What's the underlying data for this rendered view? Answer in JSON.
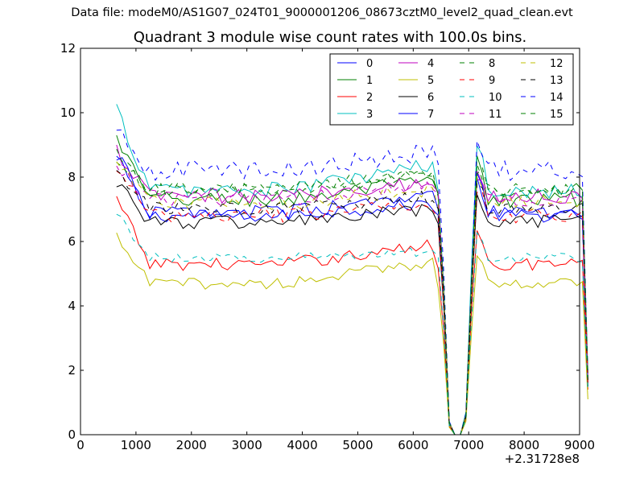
{
  "header": {
    "suptitle": "Data file: modeM0/AS1G07_024T01_9000001206_08673cztM0_level2_quad_clean.evt"
  },
  "chart_data": {
    "type": "line",
    "title": "Quadrant 3 module wise count rates with 100.0s bins.",
    "xlabel": "",
    "ylabel": "",
    "x_offset_label": "+2.31728e8",
    "xlim": [
      0,
      9000
    ],
    "ylim": [
      0,
      12
    ],
    "xticks": [
      0,
      1000,
      2000,
      3000,
      4000,
      5000,
      6000,
      7000,
      8000,
      9000
    ],
    "yticks": [
      0,
      2,
      4,
      6,
      8,
      10,
      12
    ],
    "grid": false,
    "legend_placement": "top-right",
    "legend_columns": 4,
    "x_start": 650,
    "x_step": 100,
    "shape": [
      1,
      1,
      1,
      1,
      1,
      1,
      1,
      1,
      1,
      1,
      1,
      1,
      1,
      1,
      1,
      1,
      1,
      1,
      1,
      1,
      1,
      1,
      1,
      1,
      1,
      1,
      1,
      1,
      1,
      1,
      1,
      1,
      1,
      1,
      1,
      1,
      1,
      1,
      1,
      1,
      1,
      1,
      1,
      1,
      1,
      1,
      1,
      1,
      1,
      1,
      1,
      1,
      1,
      1,
      1,
      1,
      1,
      1,
      1,
      0.6,
      0.05,
      0,
      0,
      0.07,
      0.55,
      1,
      1,
      1,
      1,
      1,
      1,
      1,
      1,
      1,
      1,
      1,
      1,
      1,
      1,
      1,
      1,
      1,
      1,
      1,
      1,
      0.27
    ],
    "series": [
      {
        "name": "0",
        "color": "#0000ff",
        "dashed": false,
        "start": 8.6,
        "base": 6.8,
        "end": 1.5,
        "noise": 0.2,
        "trend": 0.4
      },
      {
        "name": "1",
        "color": "#008000",
        "dashed": false,
        "start": 9.2,
        "base": 7.3,
        "end": 1.6,
        "noise": 0.25,
        "trend": 0.6
      },
      {
        "name": "2",
        "color": "#ff0000",
        "dashed": false,
        "start": 7.3,
        "base": 5.3,
        "end": 1.4,
        "noise": 0.2,
        "trend": 0.6
      },
      {
        "name": "3",
        "color": "#00bfbf",
        "dashed": false,
        "start": 10.1,
        "base": 7.6,
        "end": 1.9,
        "noise": 0.25,
        "trend": 0.8
      },
      {
        "name": "4",
        "color": "#bf00bf",
        "dashed": false,
        "start": 8.8,
        "base": 7.4,
        "end": 1.8,
        "noise": 0.25,
        "trend": 0.5
      },
      {
        "name": "5",
        "color": "#bfbf00",
        "dashed": false,
        "start": 6.1,
        "base": 4.7,
        "end": 1.1,
        "noise": 0.18,
        "trend": 0.7
      },
      {
        "name": "6",
        "color": "#000000",
        "dashed": false,
        "start": 7.9,
        "base": 6.6,
        "end": 1.5,
        "noise": 0.22,
        "trend": 0.4
      },
      {
        "name": "7",
        "color": "#0000ff",
        "dashed": false,
        "start": 8.7,
        "base": 6.9,
        "end": 1.6,
        "noise": 0.22,
        "trend": 0.5
      },
      {
        "name": "8",
        "color": "#008000",
        "dashed": true,
        "start": 8.6,
        "base": 7.6,
        "end": 1.9,
        "noise": 0.22,
        "trend": 0.6
      },
      {
        "name": "9",
        "color": "#ff0000",
        "dashed": true,
        "start": 8.3,
        "base": 6.8,
        "end": 1.6,
        "noise": 0.22,
        "trend": 0.4
      },
      {
        "name": "10",
        "color": "#00bfbf",
        "dashed": true,
        "start": 6.9,
        "base": 5.5,
        "end": 1.4,
        "noise": 0.15,
        "trend": 0.2
      },
      {
        "name": "11",
        "color": "#bf00bf",
        "dashed": true,
        "start": 8.4,
        "base": 7.3,
        "end": 1.7,
        "noise": 0.22,
        "trend": 0.5
      },
      {
        "name": "12",
        "color": "#bfbf00",
        "dashed": true,
        "start": 8.5,
        "base": 7.2,
        "end": 1.6,
        "noise": 0.22,
        "trend": 0.4
      },
      {
        "name": "13",
        "color": "#000000",
        "dashed": true,
        "start": 8.2,
        "base": 7.0,
        "end": 1.7,
        "noise": 0.22,
        "trend": 0.4
      },
      {
        "name": "14",
        "color": "#0000ff",
        "dashed": true,
        "start": 9.4,
        "base": 8.2,
        "end": 1.9,
        "noise": 0.3,
        "trend": 0.6
      },
      {
        "name": "15",
        "color": "#008000",
        "dashed": true,
        "start": 8.8,
        "base": 7.6,
        "end": 1.8,
        "noise": 0.22,
        "trend": 0.5
      }
    ]
  }
}
